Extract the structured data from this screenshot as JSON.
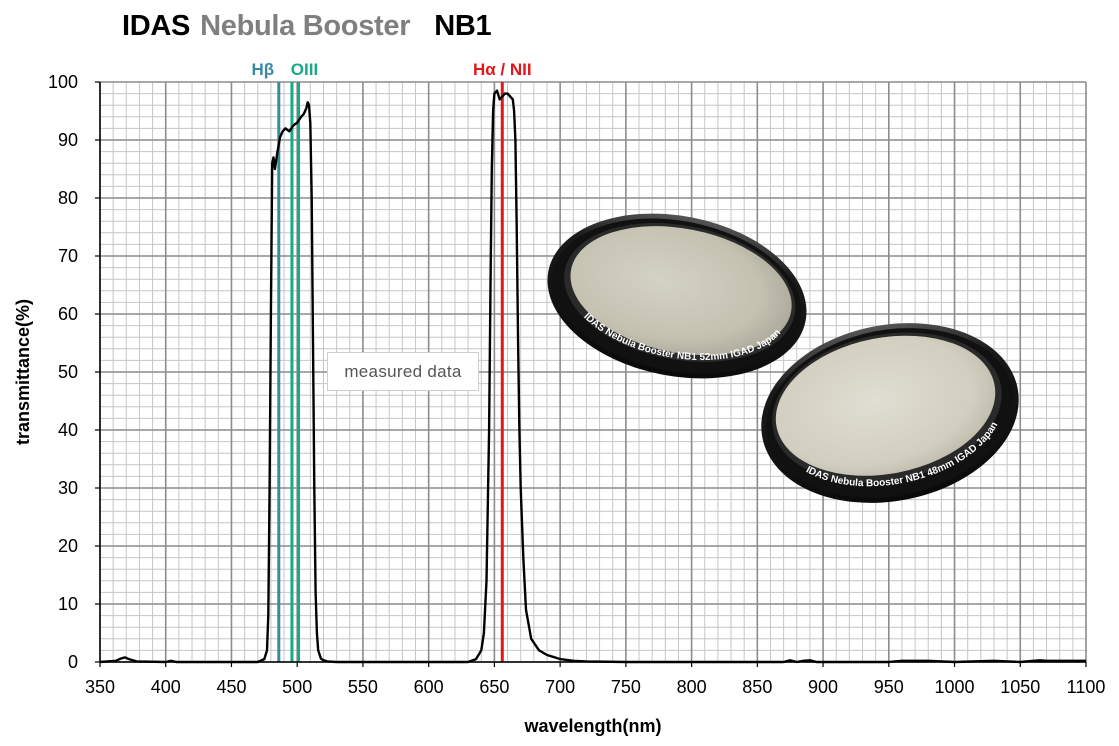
{
  "title": {
    "brand": "IDAS",
    "product": "Nebula Booster",
    "model": "NB1"
  },
  "colors": {
    "brand": "#000000",
    "product": "#7f7f7f",
    "hbeta": "#3a8a9e",
    "oiii": "#1aa88a",
    "halpha": "#e3161b",
    "curve": "#000000"
  },
  "annotation": "measured data",
  "product_images": [
    {
      "icon": "filter-52mm-photo",
      "engraving": "IDAS   Nebula Booster   NB1  52mm   IGAD   Japan"
    },
    {
      "icon": "filter-48mm-photo",
      "engraving": "IDAS   Nebula Booster   NB1  48mm   IGAD   Japan"
    }
  ],
  "chart_data": {
    "type": "line",
    "title": "IDAS Nebula Booster NB1",
    "xlabel": "wavelength(nm)",
    "ylabel": "transmittance(%)",
    "xlim": [
      350,
      1100
    ],
    "ylim": [
      0,
      100
    ],
    "grid": true,
    "x_ticks": [
      350,
      400,
      450,
      500,
      550,
      600,
      650,
      700,
      750,
      800,
      850,
      900,
      950,
      1000,
      1050,
      1100
    ],
    "y_ticks": [
      0,
      10,
      20,
      30,
      40,
      50,
      60,
      70,
      80,
      90,
      100
    ],
    "emission_lines": [
      {
        "label": "Hβ",
        "x": [
          486
        ],
        "color": "#3a8a9e"
      },
      {
        "label": "OIII",
        "x": [
          496,
          501
        ],
        "color": "#1aa88a"
      },
      {
        "label": "Hα / NII",
        "x": [
          656
        ],
        "color": "#e3161b"
      }
    ],
    "series": [
      {
        "name": "",
        "x": [
          350,
          362,
          366,
          369,
          372,
          378,
          400,
          404,
          408,
          420,
          440,
          470,
          475,
          477,
          478,
          479,
          480,
          481,
          482,
          483,
          485,
          487,
          489,
          491,
          494,
          497,
          500,
          503,
          505,
          507,
          508,
          509,
          510,
          511,
          512,
          513,
          514,
          515,
          516,
          518,
          520,
          523,
          530,
          550,
          600,
          630,
          636,
          640,
          642,
          644,
          646,
          647,
          648,
          649,
          650,
          652,
          654,
          656,
          658,
          660,
          662,
          664,
          665,
          666,
          667,
          668,
          669,
          670,
          672,
          674,
          678,
          684,
          690,
          696,
          700,
          710,
          720,
          750,
          800,
          850,
          870,
          875,
          880,
          885,
          890,
          895,
          900,
          950,
          960,
          980,
          1000,
          1030,
          1050,
          1060,
          1065,
          1070,
          1100
        ],
        "y": [
          0,
          0.2,
          0.6,
          0.8,
          0.5,
          0.1,
          0,
          0.2,
          0,
          0,
          0,
          0,
          0.5,
          2,
          8,
          30,
          60,
          86,
          87,
          85,
          88,
          90.5,
          91.5,
          92,
          91.5,
          92.5,
          93,
          94,
          94.5,
          95.5,
          96.5,
          96,
          93,
          80,
          55,
          30,
          12,
          5,
          2,
          0.6,
          0.3,
          0.1,
          0,
          0,
          0,
          0,
          0.5,
          2,
          5,
          14,
          40,
          65,
          85,
          95,
          98,
          98.5,
          97,
          97.5,
          98,
          98,
          97.5,
          97,
          95,
          90,
          75,
          55,
          40,
          30,
          18,
          9,
          4,
          2,
          1.2,
          0.8,
          0.5,
          0.2,
          0.1,
          0,
          0,
          0,
          0,
          0.3,
          0,
          0.2,
          0.3,
          0,
          0,
          0,
          0.2,
          0.2,
          0,
          0.2,
          0,
          0.2,
          0.3,
          0.2,
          0.2
        ]
      }
    ]
  }
}
